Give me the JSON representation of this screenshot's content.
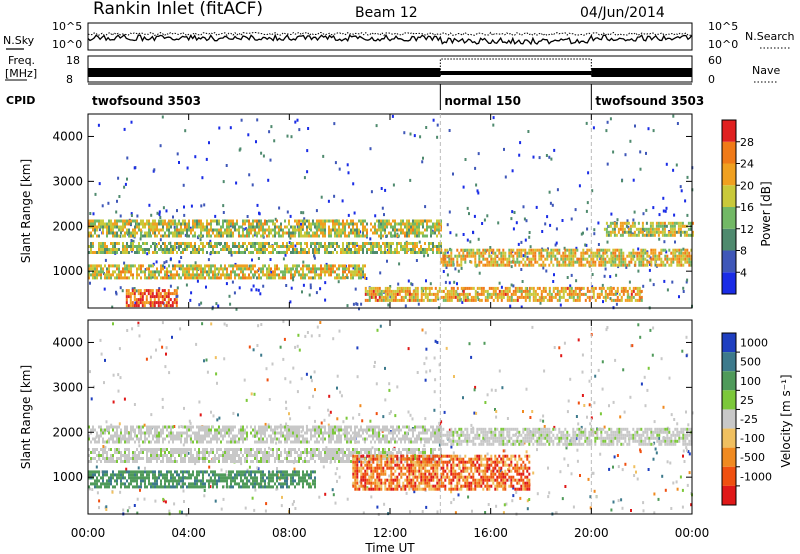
{
  "header": {
    "station": "Rankin Inlet (fitACF)",
    "beam": "Beam 12",
    "date": "04/Jun/2014"
  },
  "noise_panel": {
    "left_label": "N.Sky",
    "right_label": "N.Search",
    "y_top": "10^5",
    "y_bottom": "10^0",
    "y_top_right": "10^5",
    "y_bottom_right": "10^0"
  },
  "freq_panel": {
    "left_label_1": "Freq.",
    "left_label_2": "[MHz]",
    "right_label": "Nave",
    "y_top": "18",
    "y_bottom": "8",
    "y_top_right": "60",
    "y_bottom_right": "0"
  },
  "cpid_panel": {
    "label": "CPID",
    "segments": [
      {
        "name": "twofsound 3503",
        "start_h": 0,
        "end_h": 14
      },
      {
        "name": "normal 150",
        "start_h": 14,
        "end_h": 20
      },
      {
        "name": "twofsound 3503",
        "start_h": 20,
        "end_h": 24
      }
    ]
  },
  "time_axis": {
    "xlabel": "Time UT",
    "ticks": [
      "00:00",
      "04:00",
      "08:00",
      "12:00",
      "16:00",
      "20:00",
      "00:00"
    ],
    "tick_hours": [
      0,
      4,
      8,
      12,
      16,
      20,
      24
    ]
  },
  "chart_data": [
    {
      "type": "heatmap",
      "title": "Power",
      "ylabel": "Slant Range [km]",
      "xlabel": "",
      "xlim_hours": [
        0,
        24
      ],
      "ylim_km": [
        180,
        4500
      ],
      "yticks": [
        1000,
        2000,
        3000,
        4000
      ],
      "colorbar": {
        "label": "Power [dB]",
        "tick_labels": [
          "4",
          "8",
          "12",
          "16",
          "20",
          "24",
          "28"
        ],
        "colors": [
          "#1a2ce6",
          "#3f57b8",
          "#4f8a6e",
          "#72b865",
          "#c9c93a",
          "#f0a020",
          "#f07a18",
          "#e02020"
        ]
      },
      "bands": [
        {
          "t0": 0.0,
          "t1": 14.0,
          "r0": 1780,
          "r1": 2150,
          "level": 0.55
        },
        {
          "t0": 0.0,
          "t1": 14.0,
          "r0": 1400,
          "r1": 1650,
          "level": 0.5
        },
        {
          "t0": 0.0,
          "t1": 11.0,
          "r0": 850,
          "r1": 1150,
          "level": 0.6
        },
        {
          "t0": 1.5,
          "t1": 3.5,
          "r0": 200,
          "r1": 600,
          "level": 0.9
        },
        {
          "t0": 14.0,
          "t1": 24.0,
          "r0": 1100,
          "r1": 1500,
          "level": 0.65
        },
        {
          "t0": 11.0,
          "t1": 22.0,
          "r0": 350,
          "r1": 650,
          "level": 0.7
        },
        {
          "t0": 20.5,
          "t1": 24.0,
          "r0": 1800,
          "r1": 2100,
          "level": 0.55
        }
      ]
    },
    {
      "type": "heatmap",
      "title": "Velocity",
      "ylabel": "Slant Range [km]",
      "xlabel": "Time UT",
      "xlim_hours": [
        0,
        24
      ],
      "ylim_km": [
        180,
        4500
      ],
      "yticks": [
        1000,
        2000,
        3000,
        4000
      ],
      "colorbar": {
        "label": "Velocity [m s⁻¹]",
        "tick_labels": [
          "1000",
          "500",
          "100",
          "25",
          "-25",
          "-100",
          "-500",
          "-1000"
        ],
        "colors": [
          "#1f3fc0",
          "#3d7a8c",
          "#4f9a5a",
          "#7cc83a",
          "#c8c8c8",
          "#f0c060",
          "#f08a20",
          "#f05010",
          "#e01818"
        ]
      },
      "bands": [
        {
          "t0": 0.0,
          "t1": 14.0,
          "r0": 1750,
          "r1": 2150,
          "level": "ground"
        },
        {
          "t0": 0.0,
          "t1": 14.0,
          "r0": 1350,
          "r1": 1650,
          "level": "ground"
        },
        {
          "t0": 0.0,
          "t1": 9.0,
          "r0": 750,
          "r1": 1150,
          "level": "pos"
        },
        {
          "t0": 10.5,
          "t1": 17.5,
          "r0": 700,
          "r1": 1500,
          "level": "neg"
        },
        {
          "t0": 14.0,
          "t1": 24.0,
          "r0": 1750,
          "r1": 2100,
          "level": "ground"
        }
      ]
    }
  ]
}
